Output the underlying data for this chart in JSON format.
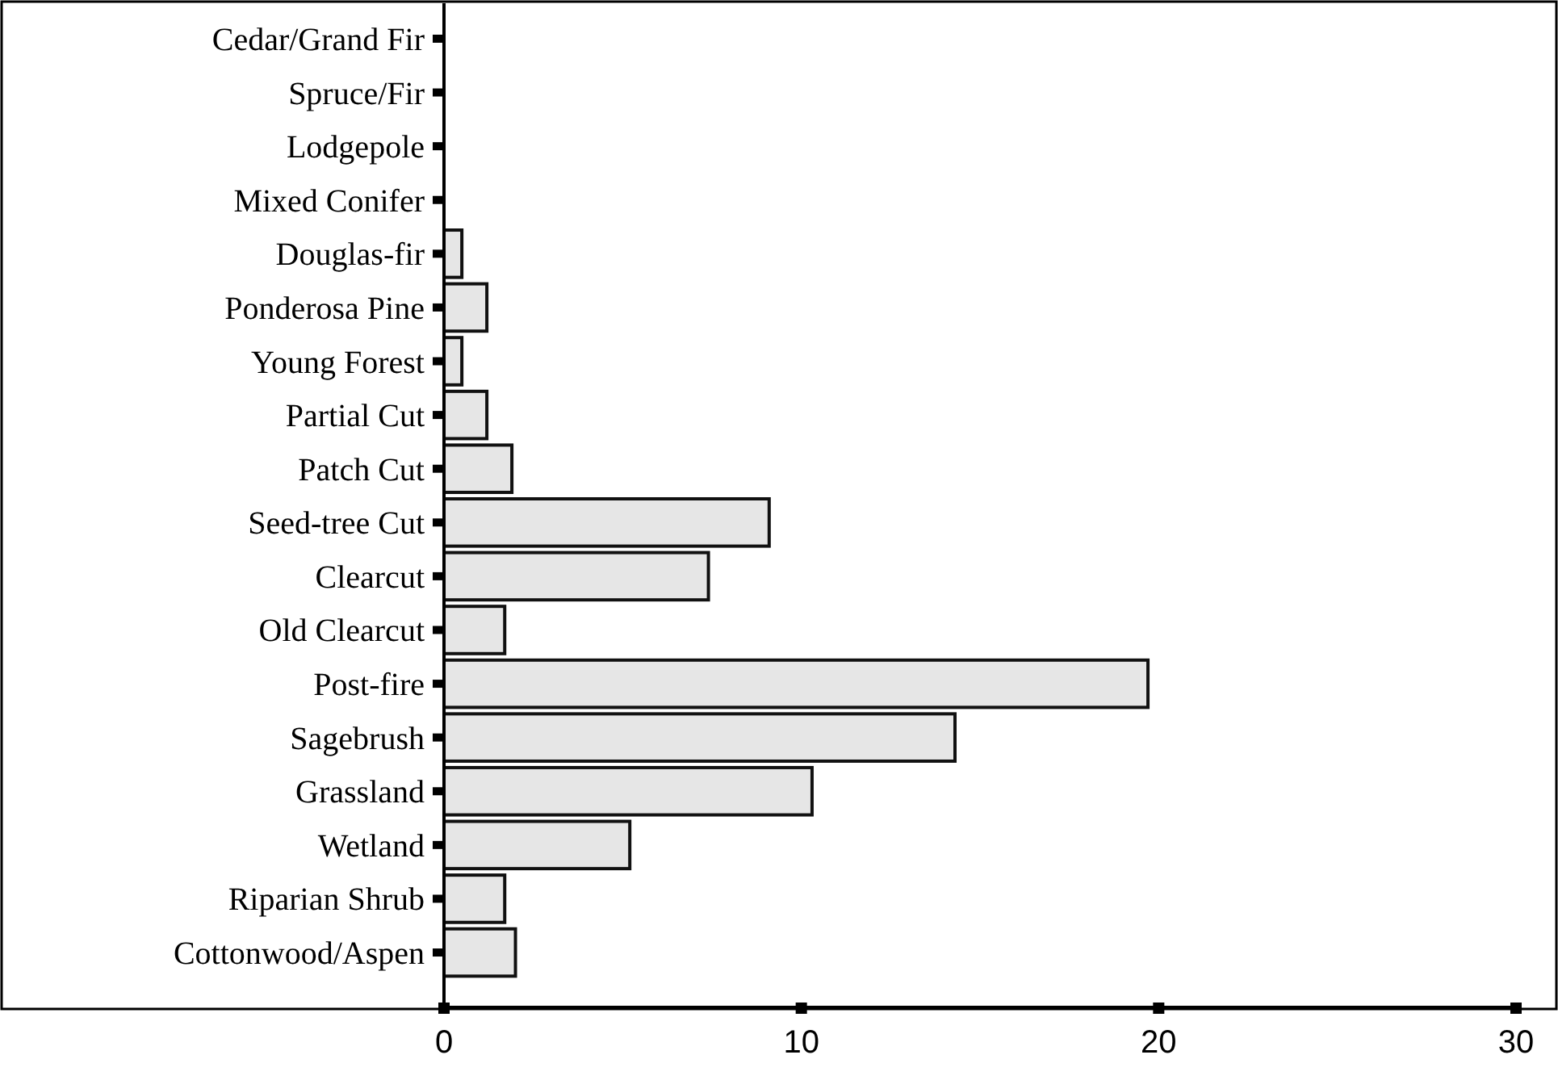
{
  "chart_data": {
    "type": "bar",
    "orientation": "horizontal",
    "categories": [
      "Cedar/Grand Fir",
      "Spruce/Fir",
      "Lodgepole",
      "Mixed Conifer",
      "Douglas-fir",
      "Ponderosa Pine",
      "Young Forest",
      "Partial Cut",
      "Patch Cut",
      "Seed-tree Cut",
      "Clearcut",
      "Old Clearcut",
      "Post-fire",
      "Sagebrush",
      "Grassland",
      "Wetland",
      "Riparian Shrub",
      "Cottonwood/Aspen"
    ],
    "values": [
      0,
      0,
      0,
      0,
      0.5,
      1.2,
      0.5,
      1.2,
      1.9,
      9.1,
      7.4,
      1.7,
      19.7,
      14.3,
      10.3,
      5.2,
      1.7,
      2.0
    ],
    "color": "#e6e6e6",
    "xlim": [
      0,
      30
    ],
    "xticks": [
      0,
      10,
      20,
      30
    ],
    "grid": false
  }
}
